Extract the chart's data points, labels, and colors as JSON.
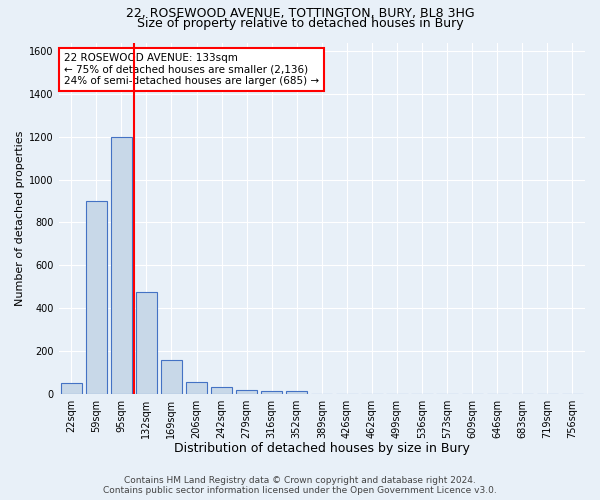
{
  "title_line1": "22, ROSEWOOD AVENUE, TOTTINGTON, BURY, BL8 3HG",
  "title_line2": "Size of property relative to detached houses in Bury",
  "xlabel": "Distribution of detached houses by size in Bury",
  "ylabel": "Number of detached properties",
  "footer_line1": "Contains HM Land Registry data © Crown copyright and database right 2024.",
  "footer_line2": "Contains public sector information licensed under the Open Government Licence v3.0.",
  "bar_labels": [
    "22sqm",
    "59sqm",
    "95sqm",
    "132sqm",
    "169sqm",
    "206sqm",
    "242sqm",
    "279sqm",
    "316sqm",
    "352sqm",
    "389sqm",
    "426sqm",
    "462sqm",
    "499sqm",
    "536sqm",
    "573sqm",
    "609sqm",
    "646sqm",
    "683sqm",
    "719sqm",
    "756sqm"
  ],
  "bar_values": [
    50,
    900,
    1200,
    475,
    155,
    55,
    30,
    15,
    12,
    10,
    0,
    0,
    0,
    0,
    0,
    0,
    0,
    0,
    0,
    0,
    0
  ],
  "bar_color": "#c8d8e8",
  "bar_edge_color": "#4472c4",
  "annotation_text": "22 ROSEWOOD AVENUE: 133sqm\n← 75% of detached houses are smaller (2,136)\n24% of semi-detached houses are larger (685) →",
  "annotation_box_color": "white",
  "annotation_box_edge_color": "red",
  "vline_x": 2.5,
  "vline_color": "red",
  "ylim": [
    0,
    1640
  ],
  "yticks": [
    0,
    200,
    400,
    600,
    800,
    1000,
    1200,
    1400,
    1600
  ],
  "background_color": "#e8f0f8",
  "plot_bg_color": "#e8f0f8",
  "grid_color": "white",
  "title1_fontsize": 9,
  "title2_fontsize": 9,
  "xlabel_fontsize": 9,
  "ylabel_fontsize": 8,
  "tick_fontsize": 7,
  "annotation_fontsize": 7.5,
  "footer_fontsize": 6.5
}
